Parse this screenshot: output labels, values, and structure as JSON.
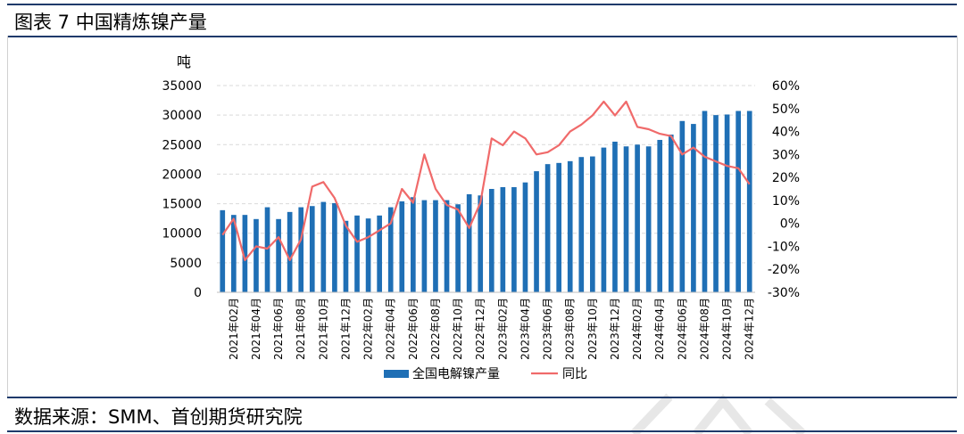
{
  "header": {
    "title": "图表 7  中国精炼镍产量"
  },
  "footer": {
    "source": "数据来源：SMM、首创期货研究院"
  },
  "colors": {
    "bar": "#1f6fb5",
    "line": "#f06a6a",
    "frame": "#1f3a6b",
    "grid": "#d9d9d9"
  },
  "chart_data": {
    "type": "bar+line",
    "y_left_unit": "吨",
    "y_left_range": [
      0,
      35000
    ],
    "y_left_ticks": [
      "0",
      "5000",
      "10000",
      "15000",
      "20000",
      "25000",
      "30000",
      "35000"
    ],
    "y_right_range": [
      -30,
      60
    ],
    "y_right_ticks": [
      "-30%",
      "-20%",
      "-10%",
      "0%",
      "10%",
      "20%",
      "30%",
      "40%",
      "50%",
      "60%"
    ],
    "grid": true,
    "legend_position": "bottom",
    "x_tick_labels": [
      "2021年02月",
      "2021年04月",
      "2021年06月",
      "2021年08月",
      "2021年10月",
      "2021年12月",
      "2022年02月",
      "2022年04月",
      "2022年06月",
      "2022年08月",
      "2022年10月",
      "2022年12月",
      "2023年02月",
      "2023年04月",
      "2023年06月",
      "2023年08月",
      "2023年10月",
      "2023年12月",
      "2024年02月",
      "2024年04月",
      "2024年06月",
      "2024年08月",
      "2024年10月",
      "2024年12月"
    ],
    "categories": [
      "2021-01",
      "2021-02",
      "2021-03",
      "2021-04",
      "2021-05",
      "2021-06",
      "2021-07",
      "2021-08",
      "2021-09",
      "2021-10",
      "2021-11",
      "2021-12",
      "2022-01",
      "2022-02",
      "2022-03",
      "2022-04",
      "2022-05",
      "2022-06",
      "2022-07",
      "2022-08",
      "2022-09",
      "2022-10",
      "2022-11",
      "2022-12",
      "2023-01",
      "2023-02",
      "2023-03",
      "2023-04",
      "2023-05",
      "2023-06",
      "2023-07",
      "2023-08",
      "2023-09",
      "2023-10",
      "2023-11",
      "2023-12",
      "2024-01",
      "2024-02",
      "2024-03",
      "2024-04",
      "2024-05",
      "2024-06",
      "2024-07",
      "2024-08",
      "2024-09",
      "2024-10",
      "2024-11",
      "2024-12"
    ],
    "series": [
      {
        "name": "全国电解镍产量",
        "type": "bar",
        "values": [
          13900,
          13100,
          13100,
          12400,
          14400,
          12400,
          13600,
          14400,
          14600,
          15300,
          15100,
          12100,
          13000,
          12500,
          13000,
          14400,
          15400,
          16100,
          15600,
          15600,
          15600,
          14900,
          16600,
          16400,
          17500,
          17800,
          17800,
          18600,
          20500,
          21700,
          21900,
          22200,
          22900,
          23000,
          24500,
          25500,
          24700,
          25000,
          24700,
          25800,
          26700,
          29000,
          28500,
          30700,
          30000,
          30100,
          30700,
          30700
        ]
      },
      {
        "name": "同比",
        "type": "line",
        "axis": "right",
        "values": [
          -5,
          2,
          -16,
          -10,
          -11,
          -6,
          -16,
          -7,
          16,
          18,
          11,
          -1,
          -8,
          -6,
          -3,
          0,
          15,
          9,
          30,
          15,
          8,
          6,
          -2,
          9,
          37,
          34,
          40,
          37,
          30,
          31,
          34,
          40,
          43,
          47,
          53,
          47,
          53,
          42,
          41,
          39,
          38,
          30,
          33,
          29,
          27,
          25,
          24,
          17
        ]
      }
    ]
  }
}
